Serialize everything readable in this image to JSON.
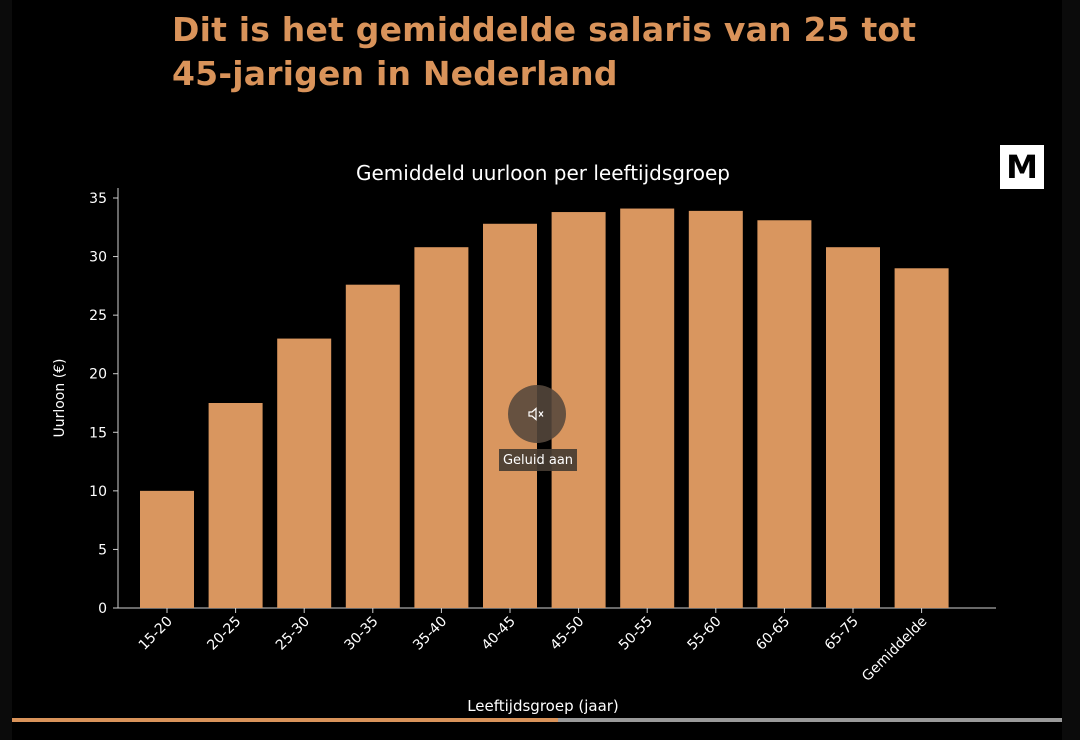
{
  "headline": "Dit is het gemiddelde salaris van 25 tot 45-jarigen in Nederland",
  "brand": {
    "logo_text": "M"
  },
  "player": {
    "mute_label": "Geluid aan",
    "progress_fraction": 0.52
  },
  "colors": {
    "accent": "#d9935a",
    "bar": "#d9965f",
    "background": "#000000"
  },
  "chart_data": {
    "type": "bar",
    "title": "Gemiddeld uurloon per leeftijdsgroep",
    "xlabel": "Leeftijdsgroep (jaar)",
    "ylabel": "Uurloon (€)",
    "categories": [
      "15-20",
      "20-25",
      "25-30",
      "30-35",
      "35-40",
      "40-45",
      "45-50",
      "50-55",
      "55-60",
      "60-65",
      "65-75",
      "Gemiddelde"
    ],
    "values": [
      10,
      17.5,
      23,
      27.6,
      30.8,
      32.8,
      33.8,
      34.1,
      33.9,
      33.1,
      30.8,
      29
    ],
    "ylim": [
      0,
      35
    ],
    "yticks": [
      0,
      5,
      10,
      15,
      20,
      25,
      30,
      35
    ],
    "grid": false
  }
}
